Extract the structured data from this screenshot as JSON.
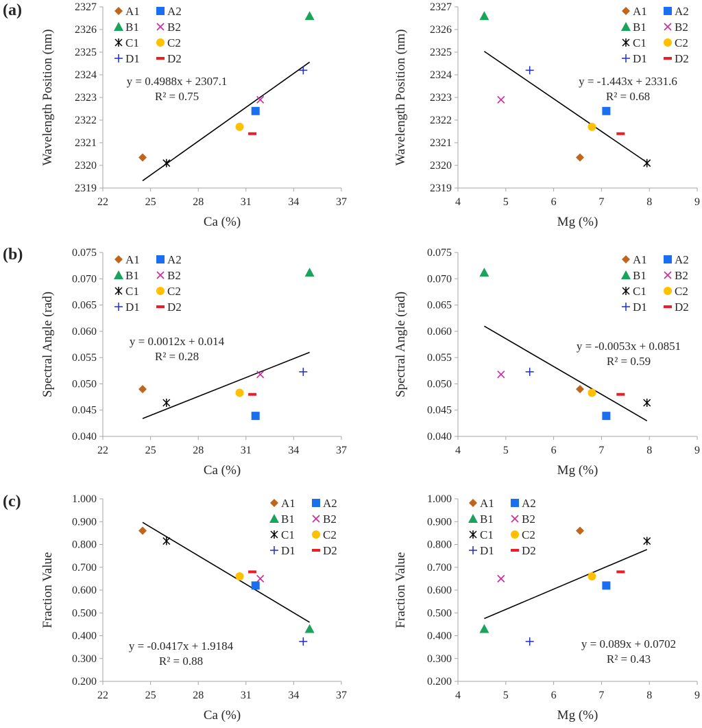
{
  "colors": {
    "A1": "#c0651c",
    "A2": "#1a6ef0",
    "B1": "#1aa35a",
    "B2": "#cc2a9c",
    "C1": "#000000",
    "C2": "#ffc000",
    "D1": "#1f2bbf",
    "D2": "#ee1c24",
    "axis": "#a6a6a6",
    "trendline": "#000000"
  },
  "panel_labels": [
    "(a)",
    "(b)",
    "(c)"
  ],
  "chart_data": [
    {
      "type": "scatter",
      "title": "",
      "xlabel": "Ca (%)",
      "ylabel": "Wavelength Position (nm)",
      "xlim": [
        22,
        37
      ],
      "ylim": [
        2319,
        2327
      ],
      "xticks": [
        "22",
        "25",
        "28",
        "31",
        "34",
        "37"
      ],
      "yticks": [
        "2319",
        "2320",
        "2321",
        "2322",
        "2323",
        "2324",
        "2325",
        "2326",
        "2327"
      ],
      "legend": [
        "A1",
        "A2",
        "B1",
        "B2",
        "C1",
        "C2",
        "D1",
        "D2"
      ],
      "legend_position": "top-left",
      "points": [
        {
          "series": "A1",
          "x": 24.5,
          "y": 2320.35
        },
        {
          "series": "A2",
          "x": 31.6,
          "y": 2322.4
        },
        {
          "series": "B1",
          "x": 35.0,
          "y": 2326.6
        },
        {
          "series": "B2",
          "x": 31.9,
          "y": 2322.9
        },
        {
          "series": "C1",
          "x": 26.0,
          "y": 2320.1
        },
        {
          "series": "C2",
          "x": 30.6,
          "y": 2321.7
        },
        {
          "series": "D1",
          "x": 34.6,
          "y": 2324.2
        },
        {
          "series": "D2",
          "x": 31.4,
          "y": 2321.4
        }
      ],
      "trendline": {
        "slope": 0.4988,
        "intercept": 2307.1,
        "x_range": [
          24.5,
          35.0
        ]
      },
      "equation": "y = 0.4988x + 2307.1",
      "r2": "R² = 0.75"
    },
    {
      "type": "scatter",
      "title": "",
      "xlabel": "Mg (%)",
      "ylabel": "Wavelength Position (nm)",
      "xlim": [
        4,
        9
      ],
      "ylim": [
        2319,
        2327
      ],
      "xticks": [
        "4",
        "5",
        "6",
        "7",
        "8",
        "9"
      ],
      "yticks": [
        "2319",
        "2320",
        "2321",
        "2322",
        "2323",
        "2324",
        "2325",
        "2326",
        "2327"
      ],
      "legend": [
        "A1",
        "A2",
        "B1",
        "B2",
        "C1",
        "C2",
        "D1",
        "D2"
      ],
      "legend_position": "top-right",
      "points": [
        {
          "series": "A1",
          "x": 6.55,
          "y": 2320.35
        },
        {
          "series": "A2",
          "x": 7.1,
          "y": 2322.4
        },
        {
          "series": "B1",
          "x": 4.55,
          "y": 2326.6
        },
        {
          "series": "B2",
          "x": 4.9,
          "y": 2322.9
        },
        {
          "series": "C1",
          "x": 7.95,
          "y": 2320.1
        },
        {
          "series": "C2",
          "x": 6.8,
          "y": 2321.7
        },
        {
          "series": "D1",
          "x": 5.5,
          "y": 2324.2
        },
        {
          "series": "D2",
          "x": 7.4,
          "y": 2321.4
        }
      ],
      "trendline": {
        "slope": -1.443,
        "intercept": 2331.6,
        "x_range": [
          4.55,
          7.95
        ]
      },
      "equation": "y = -1.443x + 2331.6",
      "r2": "R² = 0.68"
    },
    {
      "type": "scatter",
      "title": "",
      "xlabel": "Ca (%)",
      "ylabel": "Spectral Angle (rad)",
      "xlim": [
        22,
        37
      ],
      "ylim": [
        0.04,
        0.075
      ],
      "xticks": [
        "22",
        "25",
        "28",
        "31",
        "34",
        "37"
      ],
      "yticks": [
        "0.040",
        "0.045",
        "0.050",
        "0.055",
        "0.060",
        "0.065",
        "0.070",
        "0.075"
      ],
      "legend": [
        "A1",
        "A2",
        "B1",
        "B2",
        "C1",
        "C2",
        "D1",
        "D2"
      ],
      "legend_position": "top-left",
      "points": [
        {
          "series": "A1",
          "x": 24.5,
          "y": 0.049
        },
        {
          "series": "A2",
          "x": 31.6,
          "y": 0.0439
        },
        {
          "series": "B1",
          "x": 35.0,
          "y": 0.0712
        },
        {
          "series": "B2",
          "x": 31.9,
          "y": 0.0518
        },
        {
          "series": "C1",
          "x": 26.0,
          "y": 0.0464
        },
        {
          "series": "C2",
          "x": 30.6,
          "y": 0.0483
        },
        {
          "series": "D1",
          "x": 34.6,
          "y": 0.0523
        },
        {
          "series": "D2",
          "x": 31.4,
          "y": 0.048
        }
      ],
      "trendline": {
        "slope": 0.0012,
        "intercept": 0.014,
        "x_range": [
          24.5,
          35.0
        ]
      },
      "equation": "y = 0.0012x + 0.014",
      "r2": "R² = 0.28"
    },
    {
      "type": "scatter",
      "title": "",
      "xlabel": "Mg (%)",
      "ylabel": "Spectral Angle (rad)",
      "xlim": [
        4,
        9
      ],
      "ylim": [
        0.04,
        0.075
      ],
      "xticks": [
        "4",
        "5",
        "6",
        "7",
        "8",
        "9"
      ],
      "yticks": [
        "0.040",
        "0.045",
        "0.050",
        "0.055",
        "0.060",
        "0.065",
        "0.070",
        "0.075"
      ],
      "legend": [
        "A1",
        "A2",
        "B1",
        "B2",
        "C1",
        "C2",
        "D1",
        "D2"
      ],
      "legend_position": "top-right",
      "points": [
        {
          "series": "A1",
          "x": 6.55,
          "y": 0.049
        },
        {
          "series": "A2",
          "x": 7.1,
          "y": 0.0439
        },
        {
          "series": "B1",
          "x": 4.55,
          "y": 0.0712
        },
        {
          "series": "B2",
          "x": 4.9,
          "y": 0.0518
        },
        {
          "series": "C1",
          "x": 7.95,
          "y": 0.0464
        },
        {
          "series": "C2",
          "x": 6.8,
          "y": 0.0483
        },
        {
          "series": "D1",
          "x": 5.5,
          "y": 0.0523
        },
        {
          "series": "D2",
          "x": 7.4,
          "y": 0.048
        }
      ],
      "trendline": {
        "slope": -0.0053,
        "intercept": 0.0851,
        "x_range": [
          4.55,
          7.95
        ]
      },
      "equation": "y = -0.0053x + 0.0851",
      "r2": "R² = 0.59"
    },
    {
      "type": "scatter",
      "title": "",
      "xlabel": "Ca (%)",
      "ylabel": "Fraction Value",
      "xlim": [
        22,
        37
      ],
      "ylim": [
        0.2,
        1.0
      ],
      "xticks": [
        "22",
        "25",
        "28",
        "31",
        "34",
        "37"
      ],
      "yticks": [
        "0.200",
        "0.300",
        "0.400",
        "0.500",
        "0.600",
        "0.700",
        "0.800",
        "0.900",
        "1.000"
      ],
      "legend": [
        "A1",
        "A2",
        "B1",
        "B2",
        "C1",
        "C2",
        "D1",
        "D2"
      ],
      "legend_position": "top-right",
      "points": [
        {
          "series": "A1",
          "x": 24.5,
          "y": 0.86
        },
        {
          "series": "A2",
          "x": 31.6,
          "y": 0.62
        },
        {
          "series": "B1",
          "x": 35.0,
          "y": 0.43
        },
        {
          "series": "B2",
          "x": 31.9,
          "y": 0.65
        },
        {
          "series": "C1",
          "x": 26.0,
          "y": 0.815
        },
        {
          "series": "C2",
          "x": 30.6,
          "y": 0.66
        },
        {
          "series": "D1",
          "x": 34.6,
          "y": 0.375
        },
        {
          "series": "D2",
          "x": 31.4,
          "y": 0.68
        }
      ],
      "trendline": {
        "slope": -0.0417,
        "intercept": 1.9184,
        "x_range": [
          24.5,
          35.0
        ]
      },
      "equation": "y = -0.0417x + 1.9184",
      "r2": "R² = 0.88"
    },
    {
      "type": "scatter",
      "title": "",
      "xlabel": "Mg (%)",
      "ylabel": "Fraction Value",
      "xlim": [
        4,
        9
      ],
      "ylim": [
        0.2,
        1.0
      ],
      "xticks": [
        "4",
        "5",
        "6",
        "7",
        "8",
        "9"
      ],
      "yticks": [
        "0.200",
        "0.300",
        "0.400",
        "0.500",
        "0.600",
        "0.700",
        "0.800",
        "0.900",
        "1.000"
      ],
      "legend": [
        "A1",
        "A2",
        "B1",
        "B2",
        "C1",
        "C2",
        "D1",
        "D2"
      ],
      "legend_position": "top-left",
      "points": [
        {
          "series": "A1",
          "x": 6.55,
          "y": 0.86
        },
        {
          "series": "A2",
          "x": 7.1,
          "y": 0.62
        },
        {
          "series": "B1",
          "x": 4.55,
          "y": 0.43
        },
        {
          "series": "B2",
          "x": 4.9,
          "y": 0.65
        },
        {
          "series": "C1",
          "x": 7.95,
          "y": 0.815
        },
        {
          "series": "C2",
          "x": 6.8,
          "y": 0.66
        },
        {
          "series": "D1",
          "x": 5.5,
          "y": 0.375
        },
        {
          "series": "D2",
          "x": 7.4,
          "y": 0.68
        }
      ],
      "trendline": {
        "slope": 0.089,
        "intercept": 0.0702,
        "x_range": [
          4.55,
          7.95
        ]
      },
      "equation": "y = 0.089x + 0.0702",
      "r2": "R² = 0.43"
    }
  ]
}
